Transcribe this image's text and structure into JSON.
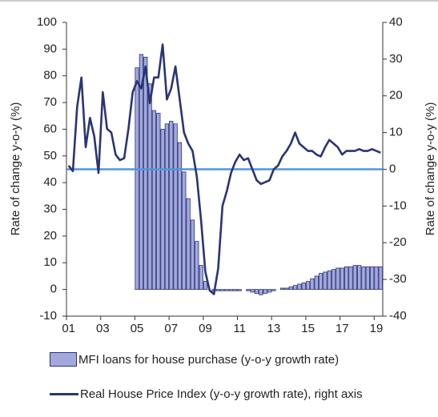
{
  "chart_data": {
    "type": "bar",
    "ylabel": "Rate of change y-o-y (%)",
    "y2label": "Rate of change y-o-y (%)",
    "categories": [
      "01",
      null,
      null,
      null,
      null,
      null,
      null,
      null,
      "03",
      null,
      null,
      null,
      null,
      null,
      null,
      null,
      "05",
      null,
      null,
      null,
      null,
      null,
      null,
      null,
      "07",
      null,
      null,
      null,
      null,
      null,
      null,
      null,
      "09",
      null,
      null,
      null,
      null,
      null,
      null,
      null,
      "11",
      null,
      null,
      null,
      null,
      null,
      null,
      null,
      "13",
      null,
      null,
      null,
      null,
      null,
      null,
      null,
      "15",
      null,
      null,
      null,
      null,
      null,
      null,
      null,
      "17",
      null,
      null,
      null,
      null,
      null,
      null,
      null,
      "19",
      null
    ],
    "ylim": [
      -10,
      100
    ],
    "yticks": [
      -10,
      0,
      10,
      20,
      30,
      40,
      50,
      60,
      70,
      80,
      90,
      100
    ],
    "y2lim": [
      -40,
      40
    ],
    "y2ticks": [
      -40,
      -30,
      -20,
      -10,
      0,
      10,
      20,
      30,
      40
    ],
    "reference_line": {
      "axis": "y2",
      "value": 0,
      "color": "#4f97d6"
    },
    "series": [
      {
        "name": "MFI loans for house purchase (y-o-y growth rate)",
        "type": "bar",
        "axis": "y",
        "color": "#a3a8dc",
        "edge_color": "#2b3478",
        "values": [
          null,
          null,
          null,
          null,
          null,
          null,
          null,
          null,
          null,
          null,
          null,
          null,
          null,
          null,
          null,
          null,
          83,
          88,
          87,
          77,
          67,
          66,
          60,
          62,
          63,
          62,
          55,
          44,
          34,
          26,
          18,
          9,
          3,
          0,
          -0.5,
          -0.5,
          -0.5,
          -0.5,
          -0.5,
          -0.5,
          -0.5,
          0,
          -0.5,
          -1,
          -1.5,
          -2,
          -1.5,
          -1,
          -0.5,
          0,
          0.5,
          0.5,
          1,
          1.5,
          2,
          2.5,
          3,
          4,
          5,
          6,
          6.5,
          7,
          7.5,
          8,
          8,
          8.5,
          8.5,
          9,
          9,
          8.5,
          8.5,
          8.5,
          8.5,
          8.5
        ]
      },
      {
        "name": "Real House Price Index (y-o-y growth rate), right axis",
        "type": "line",
        "axis": "y2",
        "color": "#2b3475",
        "values": [
          1,
          -0.5,
          17,
          25,
          6,
          14,
          9,
          -1,
          21,
          11,
          10,
          4,
          2.5,
          3,
          11,
          21,
          24,
          22,
          28,
          18,
          25,
          25,
          34,
          19,
          22,
          28,
          19,
          10,
          7,
          5,
          -2,
          -14,
          -28,
          -33,
          -34,
          -27,
          -10,
          -6,
          -1,
          2,
          4,
          2.5,
          3,
          0,
          -3,
          -4,
          -3.5,
          -3,
          0,
          1,
          3.5,
          5,
          7,
          10,
          7,
          6,
          5,
          5,
          4,
          3.5,
          6,
          8,
          7,
          6,
          4,
          5,
          5,
          5,
          5.5,
          5,
          5,
          5.5,
          5,
          4.5
        ]
      }
    ]
  }
}
